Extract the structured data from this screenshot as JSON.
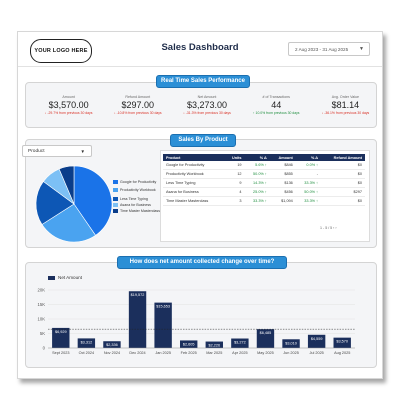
{
  "header": {
    "logo_text": "YOUR LOGO HERE",
    "title": "Sales Dashboard",
    "date_range": "2 Aug 2023 - 31 Aug 2025"
  },
  "realtime": {
    "heading": "Real Time Sales Performance",
    "kpis": [
      {
        "label": "Amount",
        "value": "$3,570.00",
        "change": "↓ -29.7% from previous 30 days",
        "trend": "neg"
      },
      {
        "label": "Refund Amount",
        "value": "$297.00",
        "change": "↓ -10.8% from previous 30 days",
        "trend": "neg"
      },
      {
        "label": "Net Amount",
        "value": "$3,273.00",
        "change": "↓ -31.3% from previous 30 days",
        "trend": "neg"
      },
      {
        "label": "# of Transactions",
        "value": "44",
        "change": "↑ 10.0% from previous 30 days",
        "trend": "pos"
      },
      {
        "label": "Avg. Order Value",
        "value": "$81.14",
        "change": "↓ -36.1% from previous 30 days",
        "trend": "neg"
      }
    ]
  },
  "by_product": {
    "heading": "Sales By Product",
    "dropdown_value": "Product",
    "columns": [
      "Product",
      "Units",
      "% Δ",
      "Amount",
      "% Δ",
      "Refund Amount"
    ],
    "rows": [
      [
        "Google for Productivity",
        "19",
        "5.6% ↑",
        "$846",
        "0.0% ↑",
        "$0"
      ],
      [
        "Productivity Workbook",
        "12",
        "50.0% ↑",
        "$855",
        "-",
        "$0"
      ],
      [
        "Less Time Typing",
        "9",
        "14.3% ↑",
        "$136",
        "33.3% ↑",
        "$0"
      ],
      [
        "Asana for Business",
        "4",
        "25.0% ↑",
        "$456",
        "50.0% ↑",
        "$297"
      ],
      [
        "Time Master Masterclass",
        "3",
        "33.3% ↑",
        "$1,094",
        "33.3% ↑",
        "$0"
      ]
    ],
    "pager": "1 - 5 / 5",
    "pie": {
      "slices": [
        {
          "name": "Google for Productivity",
          "value": 19,
          "color": "#1a73e8"
        },
        {
          "name": "Productivity Workbook",
          "value": 12,
          "color": "#4aa3f0"
        },
        {
          "name": "Less Time Typing",
          "value": 9,
          "color": "#0d57b5"
        },
        {
          "name": "Asana for Business",
          "value": 4,
          "color": "#7cc0f5"
        },
        {
          "name": "Time Master Masterclass",
          "value": 3,
          "color": "#0a3d8a"
        }
      ]
    }
  },
  "chart_data": {
    "type": "bar",
    "title": "How does net amount collected change over time?",
    "legend": "Net Amount",
    "categories": [
      "Sept 2023",
      "Oct 2024",
      "Nov 2024",
      "Dec 2024",
      "Jan 2025",
      "Feb 2025",
      "Mar 2025",
      "Apr 2025",
      "May 2025",
      "Jun 2025",
      "Jul 2025",
      "Aug 2025"
    ],
    "values": [
      6929,
      3312,
      2336,
      19572,
      15653,
      2605,
      2226,
      3272,
      6485,
      3010,
      4559,
      3570
    ],
    "labels": [
      "$6,929",
      "$3,312",
      "$2,336",
      "$19,572",
      "$15,653",
      "$2,605",
      "$2,226",
      "$3,272",
      "$6,485",
      "$3,010",
      "$4,559",
      "$3,570"
    ],
    "yticks": [
      "0",
      "5K",
      "10K",
      "15K",
      "20K"
    ],
    "ylim": [
      0,
      20000
    ],
    "reference_line": 6500,
    "bar_color": "#1b2f5c"
  }
}
